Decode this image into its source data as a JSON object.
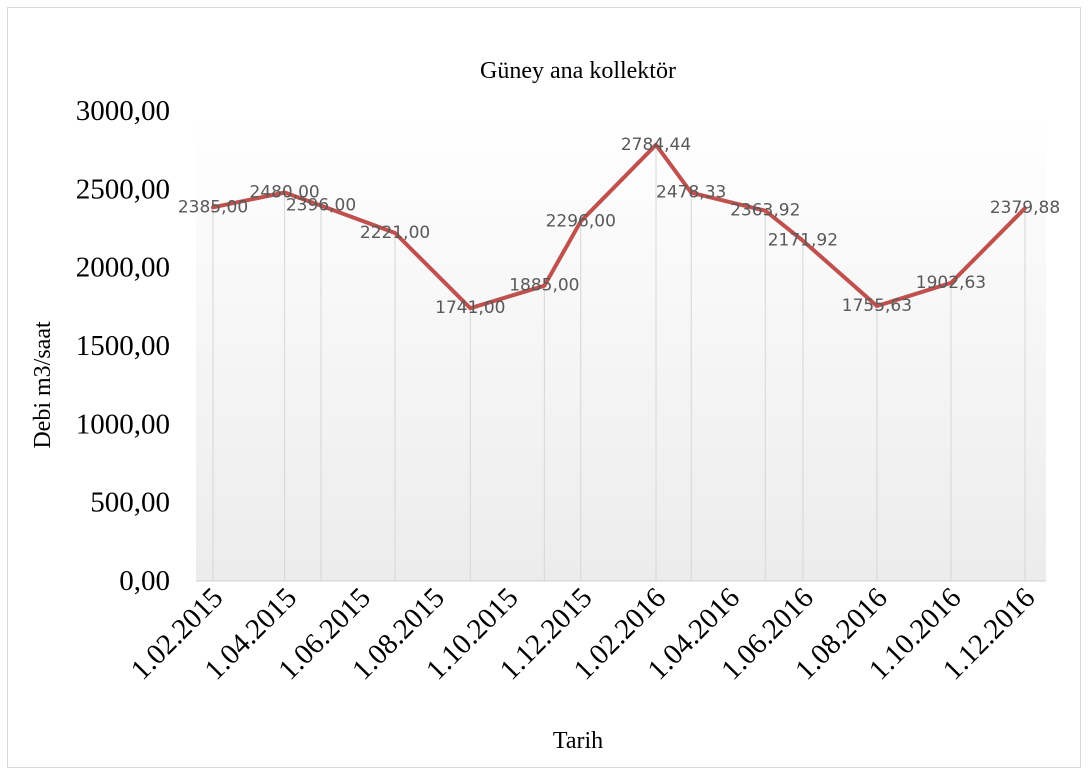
{
  "chart_data": {
    "type": "line",
    "title": "Güney ana kollektör",
    "xlabel": "Tarih",
    "ylabel": "Debi m3/saat",
    "ylim": [
      0,
      3000
    ],
    "yticks": [
      "0,00",
      "500,00",
      "1000,00",
      "1500,00",
      "2000,00",
      "2500,00",
      "3000,00"
    ],
    "x_tick_labels": [
      "1.02.2015",
      "1.04.2015",
      "1.06.2015",
      "1.08.2015",
      "1.10.2015",
      "1.12.2015",
      "1.02.2016",
      "1.04.2016",
      "1.06.2016",
      "1.08.2016",
      "1.10.2016",
      "1.12.2016"
    ],
    "x": [
      "2015-02-01",
      "2015-04-01",
      "2015-05-01",
      "2015-07-01",
      "2015-09-01",
      "2015-11-01",
      "2015-12-01",
      "2016-02-01",
      "2016-03-01",
      "2016-05-01",
      "2016-06-01",
      "2016-08-01",
      "2016-10-01",
      "2016-12-01"
    ],
    "series": [
      {
        "values": [
          2385.0,
          2480.0,
          2396.0,
          2221.0,
          1741.0,
          1885.0,
          2296.0,
          2784.44,
          2478.33,
          2363.92,
          2171.92,
          1755.63,
          1902.63,
          2379.88
        ],
        "labels": [
          "2385,00",
          "2480,00",
          "2396,00",
          "2221,00",
          "1741,00",
          "1885,00",
          "2296,00",
          "2784,44",
          "2478,33",
          "2363,92",
          "2171,92",
          "1755,63",
          "1902,63",
          "2379,88"
        ],
        "color": "#c0504d"
      }
    ],
    "grid": "vertical drop lines at data points",
    "legend": "none"
  }
}
